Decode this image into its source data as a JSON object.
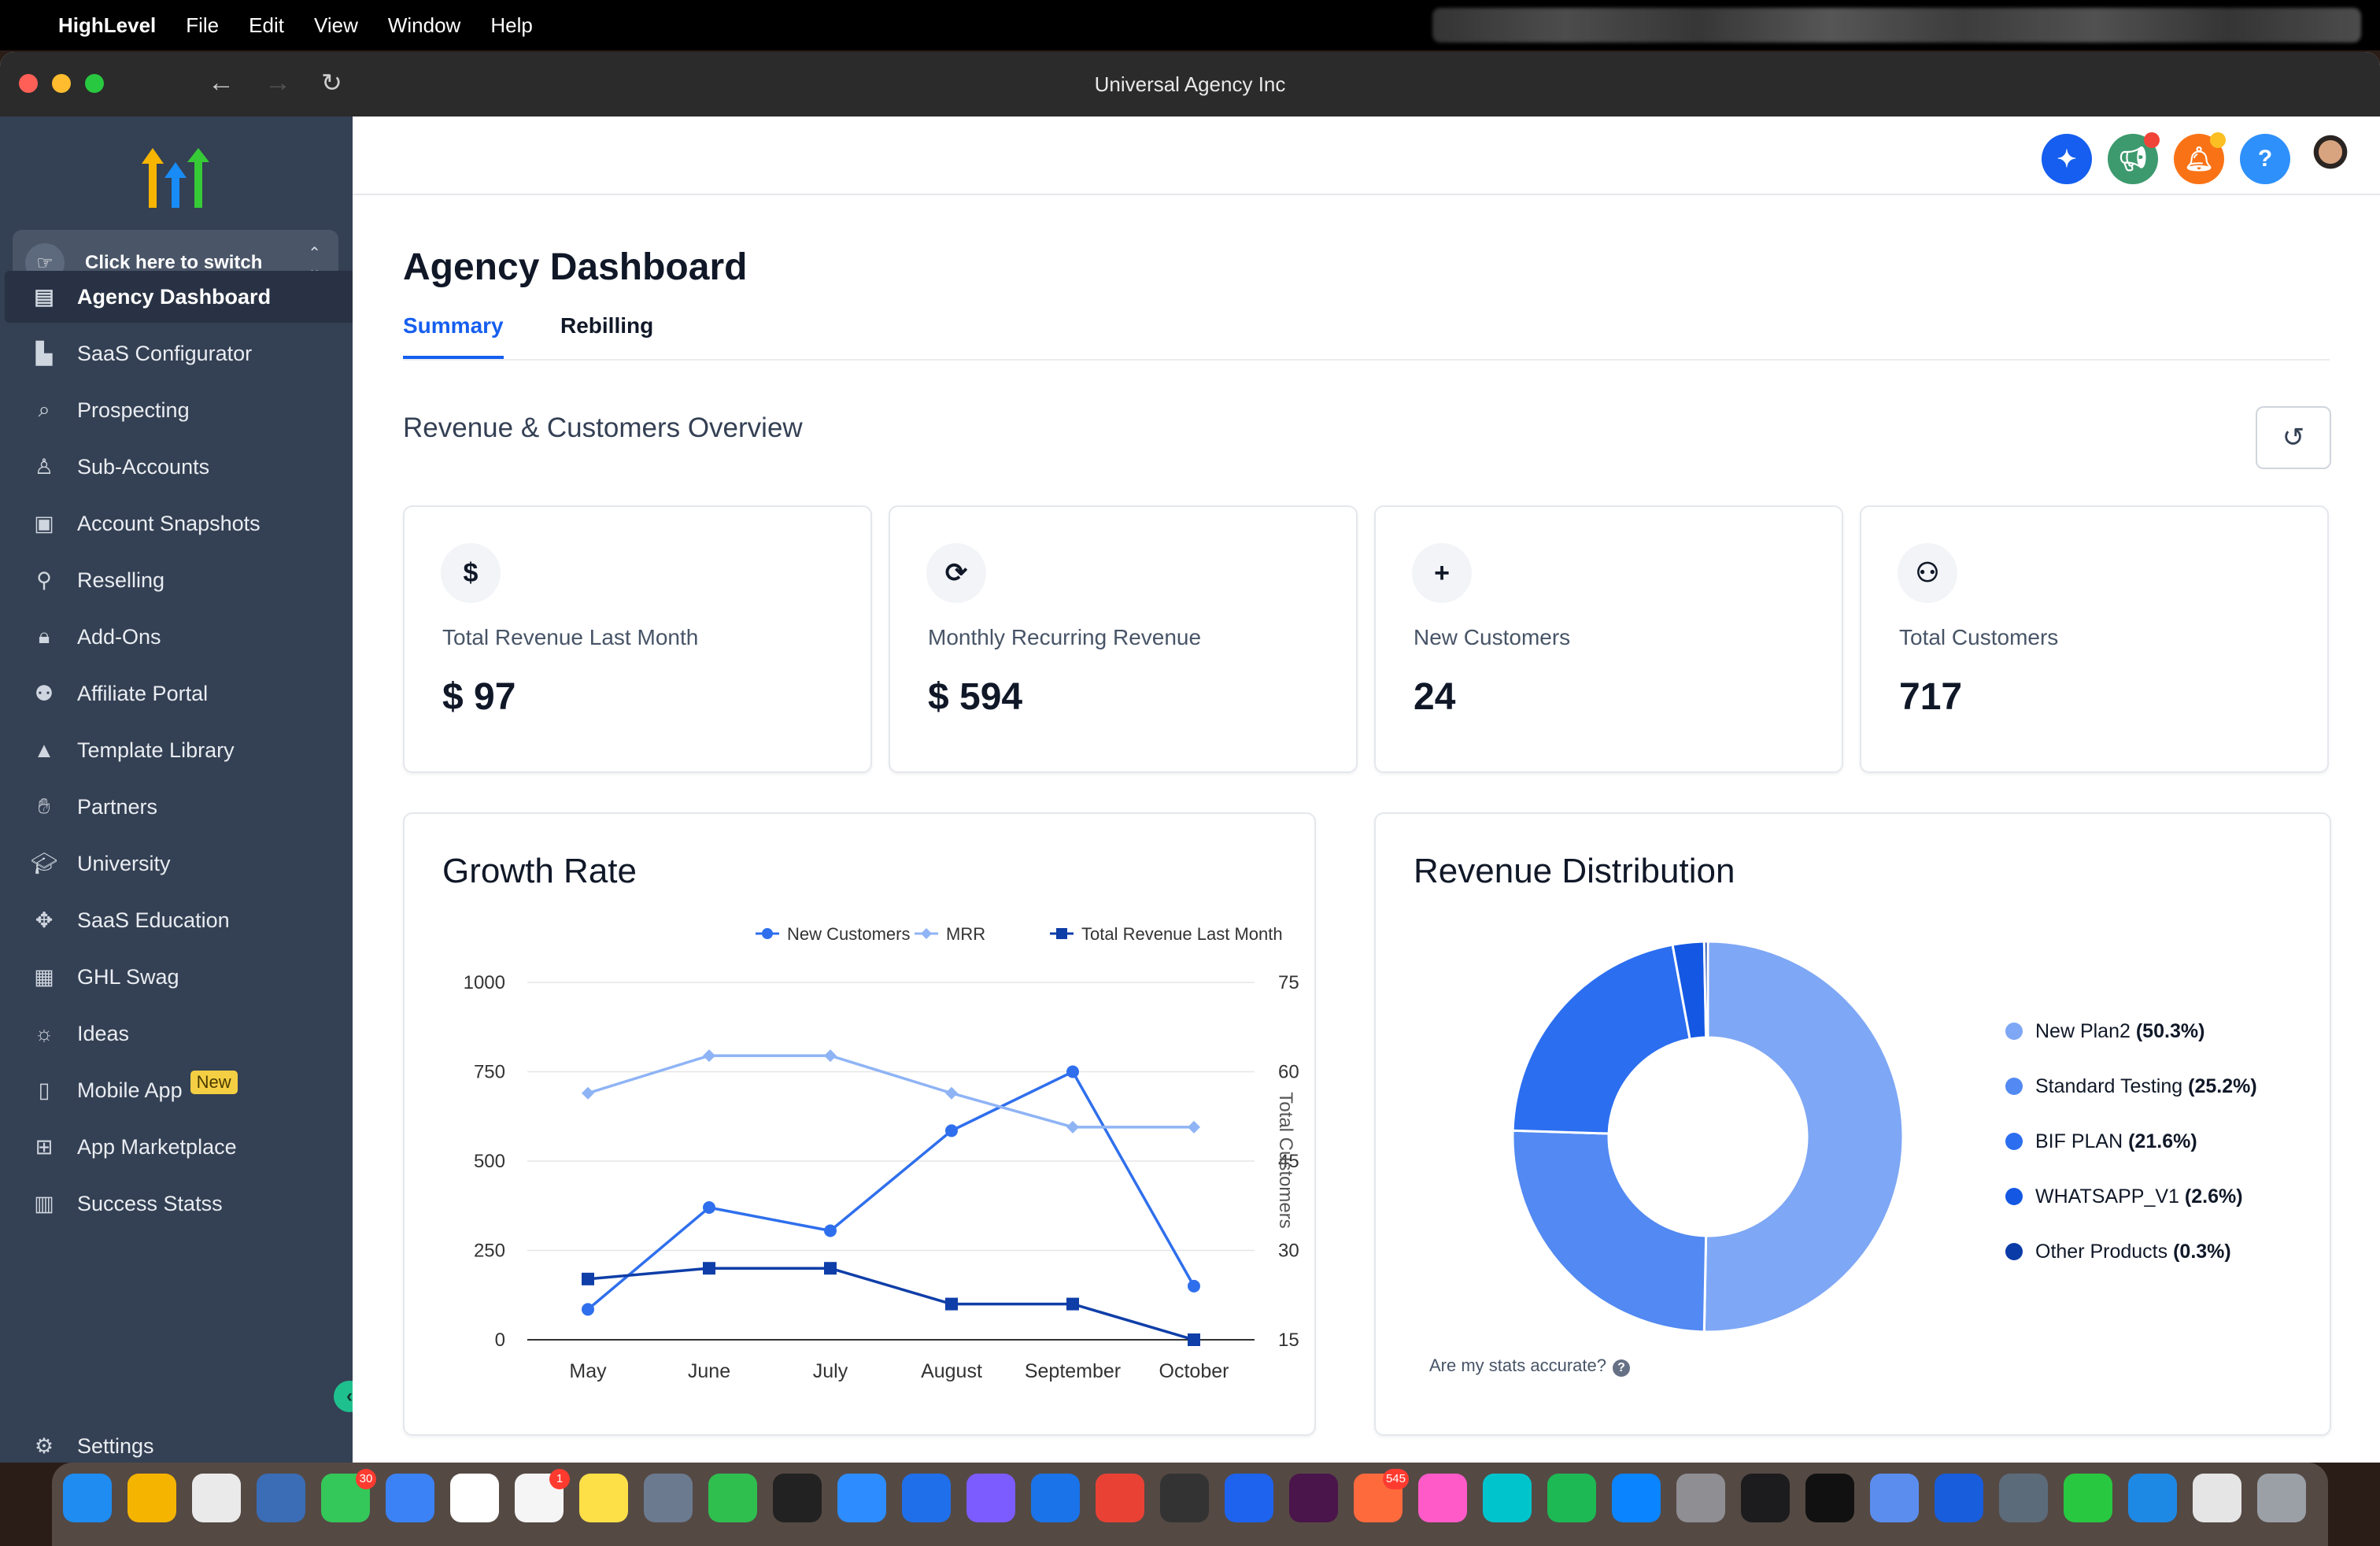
{
  "menubar": {
    "app": "HighLevel",
    "items": [
      "File",
      "Edit",
      "View",
      "Window",
      "Help"
    ]
  },
  "window": {
    "title": "Universal Agency Inc"
  },
  "sidebar": {
    "switcher_label": "Click here to switch",
    "items": [
      {
        "label": "Agency Dashboard",
        "icon": "dashboard-icon",
        "active": true
      },
      {
        "label": "SaaS Configurator",
        "icon": "bar-chart-icon"
      },
      {
        "label": "Prospecting",
        "icon": "prospecting-icon"
      },
      {
        "label": "Sub-Accounts",
        "icon": "user-icon"
      },
      {
        "label": "Account Snapshots",
        "icon": "snapshot-icon"
      },
      {
        "label": "Reselling",
        "icon": "reselling-icon"
      },
      {
        "label": "Add-Ons",
        "icon": "bag-icon"
      },
      {
        "label": "Affiliate Portal",
        "icon": "users-icon"
      },
      {
        "label": "Template Library",
        "icon": "shapes-icon"
      },
      {
        "label": "Partners",
        "icon": "handshake-icon"
      },
      {
        "label": "University",
        "icon": "graduation-cap-icon"
      },
      {
        "label": "SaaS Education",
        "icon": "puzzle-icon"
      },
      {
        "label": "GHL Swag",
        "icon": "store-icon"
      },
      {
        "label": "Ideas",
        "icon": "lightbulb-icon"
      },
      {
        "label": "Mobile App",
        "icon": "phone-icon",
        "badge": "New"
      },
      {
        "label": "App Marketplace",
        "icon": "grid-icon"
      },
      {
        "label": "Success Statss",
        "icon": "stats-icon"
      }
    ],
    "settings_label": "Settings"
  },
  "header": {
    "icons": [
      {
        "name": "ai-sparkle-icon",
        "color": "#155eef"
      },
      {
        "name": "megaphone-icon",
        "color": "#3d9a6e",
        "dot": "#f04438"
      },
      {
        "name": "bell-icon",
        "color": "#f97316",
        "dot": "#fbbf24"
      },
      {
        "name": "help-icon",
        "color": "#2e90fa"
      }
    ]
  },
  "page": {
    "title": "Agency Dashboard",
    "tabs": [
      "Summary",
      "Rebilling"
    ],
    "active_tab": "Summary",
    "section_title": "Revenue & Customers Overview"
  },
  "cards": [
    {
      "icon": "$",
      "label": "Total Revenue Last Month",
      "value": "$ 97"
    },
    {
      "icon": "⟳",
      "label": "Monthly Recurring Revenue",
      "value": "$ 594"
    },
    {
      "icon": "+",
      "label": "New Customers",
      "value": "24"
    },
    {
      "icon": "⚇",
      "label": "Total Customers",
      "value": "717"
    }
  ],
  "growth": {
    "title": "Growth Rate",
    "chart_data": {
      "type": "line",
      "categories": [
        "May",
        "June",
        "July",
        "August",
        "September",
        "October"
      ],
      "left_axis": {
        "ticks": [
          "0",
          "250",
          "500",
          "750",
          "1000"
        ],
        "ylim": [
          0,
          1000
        ]
      },
      "right_axis": {
        "label": "Total Customers",
        "ticks": [
          "15",
          "30",
          "45",
          "60",
          "75"
        ],
        "ylim": [
          15,
          75
        ]
      },
      "series": [
        {
          "name": "New Customers",
          "color": "#2f6fed",
          "marker": "circle",
          "axis": "left",
          "values": [
            85,
            370,
            305,
            585,
            750,
            150
          ]
        },
        {
          "name": "MRR",
          "color": "#8fb4f5",
          "marker": "diamond",
          "axis": "left",
          "values": [
            690,
            795,
            795,
            690,
            595,
            595
          ]
        },
        {
          "name": "Total Revenue Last Month",
          "color": "#0f3ea8",
          "marker": "square",
          "axis": "left",
          "values": [
            170,
            200,
            200,
            100,
            100,
            0
          ]
        }
      ],
      "legend": "top-right",
      "grid": true
    }
  },
  "distribution": {
    "title": "Revenue Distribution",
    "chart_data": {
      "type": "pie",
      "donut": true,
      "slices": [
        {
          "label": "New Plan2",
          "pct_text": "(50.3%)",
          "value": 50.3,
          "color": "#7ea7f5"
        },
        {
          "label": "Standard Testing",
          "pct_text": "(25.2%)",
          "value": 25.2,
          "color": "#5289f2"
        },
        {
          "label": "BIF PLAN",
          "pct_text": "(21.6%)",
          "value": 21.6,
          "color": "#2b6ef0"
        },
        {
          "label": "WHATSAPP_V1",
          "pct_text": "(2.6%)",
          "value": 2.6,
          "color": "#1457e3"
        },
        {
          "label": "Other Products",
          "pct_text": "(0.3%)",
          "value": 0.3,
          "color": "#0b3ba6"
        }
      ]
    },
    "stats_question": "Are my stats accurate?"
  }
}
